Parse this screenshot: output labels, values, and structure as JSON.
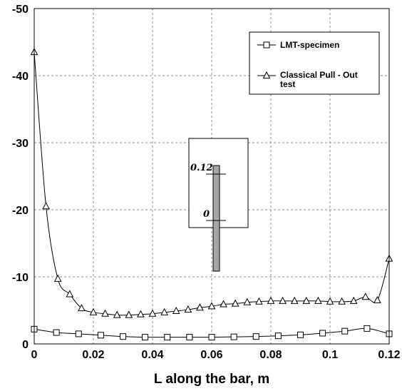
{
  "chart_data": {
    "type": "line",
    "title": "",
    "xlabel": "L along the bar, m",
    "ylabel": "",
    "xlim": [
      0,
      0.12
    ],
    "ylim": [
      0,
      -50
    ],
    "y_axis_inverted": true,
    "grid": true,
    "legend_placement": "top-right",
    "x_ticks": [
      0,
      0.02,
      0.04,
      0.06,
      0.08,
      0.1,
      0.12
    ],
    "x_tick_labels": [
      "0",
      "0.02",
      "0.04",
      "0.06",
      "0.08",
      "0.1",
      "0.12"
    ],
    "y_ticks": [
      0,
      -10,
      -20,
      -30,
      -40,
      -50
    ],
    "y_tick_labels": [
      "0",
      "-10",
      "-20",
      "-30",
      "-40",
      "-50"
    ],
    "series": [
      {
        "name": "LMT-specimen",
        "marker": "square",
        "color": "#000000",
        "x": [
          0,
          0.0075,
          0.015,
          0.0225,
          0.03,
          0.0375,
          0.045,
          0.0525,
          0.06,
          0.0675,
          0.075,
          0.0825,
          0.09,
          0.0975,
          0.105,
          0.1125,
          0.12
        ],
        "y": [
          -2.2,
          -1.7,
          -1.5,
          -1.3,
          -1.1,
          -1.0,
          -1.0,
          -1.0,
          -1.0,
          -1.05,
          -1.1,
          -1.2,
          -1.35,
          -1.6,
          -1.9,
          -2.3,
          -1.5
        ]
      },
      {
        "name": "Classical Pull - Out test",
        "marker": "triangle",
        "color": "#000000",
        "x": [
          0,
          0.004,
          0.008,
          0.012,
          0.016,
          0.02,
          0.024,
          0.028,
          0.032,
          0.036,
          0.04,
          0.044,
          0.048,
          0.052,
          0.056,
          0.06,
          0.064,
          0.068,
          0.072,
          0.076,
          0.08,
          0.084,
          0.088,
          0.092,
          0.096,
          0.1,
          0.104,
          0.108,
          0.112,
          0.116,
          0.12
        ],
        "y": [
          -43.5,
          -20.5,
          -9.7,
          -7.4,
          -5.3,
          -4.7,
          -4.5,
          -4.3,
          -4.3,
          -4.4,
          -4.5,
          -4.7,
          -4.9,
          -5.1,
          -5.4,
          -5.6,
          -5.9,
          -6.0,
          -6.2,
          -6.3,
          -6.4,
          -6.4,
          -6.4,
          -6.4,
          -6.4,
          -6.3,
          -6.3,
          -6.4,
          -7.0,
          -6.5,
          -12.7
        ]
      }
    ],
    "inset": {
      "labels": [
        "0.12",
        "0"
      ],
      "fill_color": "#a6a6a6"
    }
  }
}
